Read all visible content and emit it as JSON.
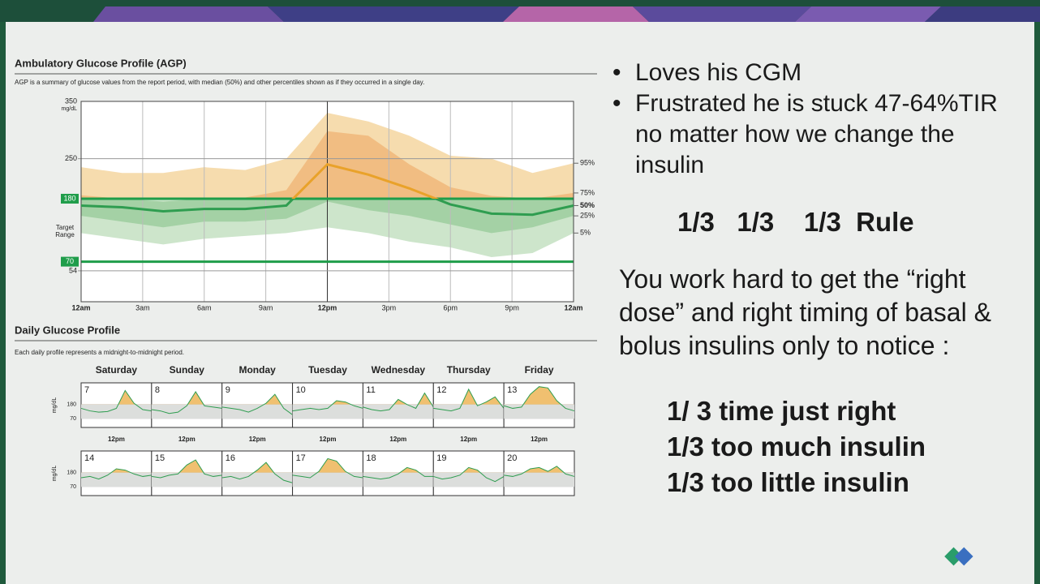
{
  "slide": {
    "bullets": [
      "Loves his CGM",
      "Frustrated he is stuck 47-64%TIR no matter how we change the insulin"
    ],
    "rule": "1/3   1/3    1/3  Rule",
    "paragraph": "You work hard to get the “right dose” and right timing of  basal & bolus insulins only to notice :",
    "outcomes": [
      "1/ 3 time just right",
      "1/3 too much insulin",
      "1/3 too little insulin"
    ]
  },
  "chart_data": [
    {
      "type": "agp",
      "title": "Ambulatory Glucose Profile (AGP)",
      "subtitle": "AGP is a summary of glucose values from the report period, with median (50%) and other percentiles shown as if they occurred in a single day.",
      "ylabel": "mg/dL",
      "target_label": [
        "Target",
        "Range"
      ],
      "target": [
        70,
        180
      ],
      "x": [
        0,
        2,
        4,
        6,
        8,
        10,
        12,
        14,
        16,
        18,
        20,
        22,
        24
      ],
      "xlim": [
        0,
        24
      ],
      "xticks": [
        {
          "value": 0,
          "label": "12am"
        },
        {
          "value": 3,
          "label": "3am"
        },
        {
          "value": 6,
          "label": "6am"
        },
        {
          "value": 9,
          "label": "9am"
        },
        {
          "value": 12,
          "label": "12pm"
        },
        {
          "value": 15,
          "label": "3pm"
        },
        {
          "value": 18,
          "label": "6pm"
        },
        {
          "value": 21,
          "label": "9pm"
        },
        {
          "value": 24,
          "label": "12am"
        }
      ],
      "ylim": [
        0,
        350
      ],
      "yticks": [
        54,
        70,
        180,
        250,
        350
      ],
      "series": [
        {
          "name": "95%",
          "values": [
            235,
            225,
            225,
            235,
            230,
            250,
            330,
            315,
            290,
            255,
            250,
            225,
            242
          ]
        },
        {
          "name": "75%",
          "values": [
            186,
            180,
            175,
            180,
            182,
            195,
            298,
            290,
            240,
            200,
            185,
            180,
            190
          ]
        },
        {
          "name": "50%",
          "values": [
            168,
            165,
            158,
            162,
            162,
            168,
            240,
            222,
            198,
            170,
            154,
            152,
            168
          ]
        },
        {
          "name": "25%",
          "values": [
            150,
            140,
            130,
            140,
            140,
            145,
            175,
            160,
            150,
            135,
            120,
            130,
            150
          ]
        },
        {
          "name": "5%",
          "values": [
            120,
            110,
            100,
            110,
            115,
            120,
            130,
            120,
            105,
            95,
            78,
            85,
            120
          ]
        }
      ],
      "above_colors": [
        "#f6dcae",
        "#f1bd82",
        "#e9a22a"
      ],
      "below_colors": [
        "#cde5cb",
        "#a4d1a5",
        "#2f9d50"
      ],
      "target_color": "#1f9d4a"
    },
    {
      "type": "daily",
      "title": "Daily Glucose Profile",
      "subtitle": "Each daily profile represents a midnight-to-midnight period.",
      "ylabel": "mg/dL",
      "midday_label": "12pm",
      "weekdays": [
        "Saturday",
        "Sunday",
        "Monday",
        "Tuesday",
        "Wednesday",
        "Thursday",
        "Friday"
      ],
      "x": [
        0,
        3,
        6,
        9,
        12,
        15,
        18,
        21,
        24
      ],
      "xlim": [
        0,
        24
      ],
      "ylim": [
        0,
        350
      ],
      "yticks": [
        70,
        180
      ],
      "days": [
        {
          "label": 7,
          "values": [
            150,
            130,
            120,
            125,
            150,
            290,
            190,
            140,
            130
          ]
        },
        {
          "label": 8,
          "values": [
            140,
            130,
            110,
            120,
            170,
            280,
            170,
            160,
            150
          ]
        },
        {
          "label": 9,
          "values": [
            160,
            150,
            140,
            120,
            150,
            190,
            260,
            150,
            100
          ]
        },
        {
          "label": 10,
          "values": [
            130,
            140,
            150,
            140,
            150,
            210,
            200,
            170,
            150
          ]
        },
        {
          "label": 11,
          "values": [
            160,
            140,
            130,
            140,
            220,
            180,
            150,
            270,
            160
          ]
        },
        {
          "label": 12,
          "values": [
            150,
            140,
            130,
            150,
            300,
            170,
            200,
            240,
            150
          ]
        },
        {
          "label": 13,
          "values": [
            170,
            150,
            160,
            260,
            320,
            310,
            210,
            150,
            130
          ]
        },
        {
          "label": 14,
          "values": [
            140,
            150,
            130,
            160,
            210,
            200,
            170,
            150,
            160
          ]
        },
        {
          "label": 15,
          "values": [
            150,
            140,
            160,
            170,
            240,
            280,
            170,
            150,
            160
          ]
        },
        {
          "label": 16,
          "values": [
            140,
            150,
            130,
            150,
            200,
            260,
            170,
            120,
            100
          ]
        },
        {
          "label": 17,
          "values": [
            160,
            150,
            140,
            190,
            290,
            270,
            190,
            150,
            140
          ]
        },
        {
          "label": 18,
          "values": [
            150,
            140,
            130,
            140,
            170,
            220,
            200,
            150,
            150
          ]
        },
        {
          "label": 19,
          "values": [
            150,
            130,
            140,
            160,
            220,
            200,
            140,
            110,
            150
          ]
        },
        {
          "label": 20,
          "values": [
            160,
            150,
            170,
            210,
            220,
            190,
            230,
            170,
            150
          ]
        }
      ],
      "line_color": "#2f9d50",
      "above_color": "#f0c070",
      "range_color": "#dcdedc"
    }
  ]
}
